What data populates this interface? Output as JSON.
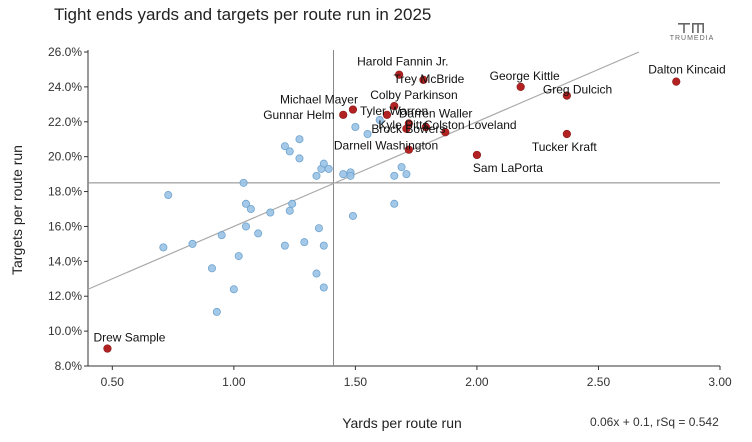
{
  "title": "Tight ends yards and targets per route run in 2025",
  "brand": {
    "name": "TRUMEDIA",
    "icon": "trumedia-logo-icon"
  },
  "formula": "0.06x + 0.1, rSq = 0.542",
  "chart_data": {
    "type": "scatter",
    "title": "Tight ends yards and targets per route run in 2025",
    "xlabel": "Yards per route run",
    "ylabel": "Targets per route run",
    "xlim": [
      0.4,
      3.0
    ],
    "ylim": [
      0.08,
      0.26
    ],
    "x_ticks": [
      0.5,
      1.0,
      1.5,
      2.0,
      2.5,
      3.0
    ],
    "x_tick_labels": [
      "0.50",
      "1.00",
      "1.50",
      "2.00",
      "2.50",
      "3.00"
    ],
    "y_ticks": [
      0.08,
      0.1,
      0.12,
      0.14,
      0.16,
      0.18,
      0.2,
      0.22,
      0.24,
      0.26
    ],
    "y_tick_labels": [
      "8.0%",
      "10.0%",
      "12.0%",
      "14.0%",
      "16.0%",
      "18.0%",
      "20.0%",
      "22.0%",
      "24.0%",
      "26.0%"
    ],
    "grid": false,
    "reference_lines": {
      "x_average": 1.41,
      "y_average": 0.185
    },
    "trendline": {
      "slope": 0.06,
      "intercept": 0.1,
      "r_squared": 0.542
    },
    "colors": {
      "labeled": "#b22222",
      "other": "#9ac3e6",
      "other_stroke": "#6fa3cf",
      "trend": "#aaaaaa",
      "reference": "#888888"
    },
    "labeled_points": [
      {
        "name": "Dalton Kincaid",
        "x": 2.82,
        "y": 0.243
      },
      {
        "name": "Harold Fannin Jr.",
        "x": 1.68,
        "y": 0.247
      },
      {
        "name": "Trey McBride",
        "x": 1.78,
        "y": 0.244
      },
      {
        "name": "George Kittle",
        "x": 2.18,
        "y": 0.24
      },
      {
        "name": "Greg Dulcich",
        "x": 2.37,
        "y": 0.235
      },
      {
        "name": "Colby Parkinson",
        "x": 1.66,
        "y": 0.229
      },
      {
        "name": "Michael Mayer",
        "x": 1.49,
        "y": 0.227
      },
      {
        "name": "Tyler Warren",
        "x": 1.63,
        "y": 0.224
      },
      {
        "name": "Darren Waller",
        "x": 1.72,
        "y": 0.219
      },
      {
        "name": "Gunnar Helm",
        "x": 1.45,
        "y": 0.224
      },
      {
        "name": "Kyle Pitts",
        "x": 1.71,
        "y": 0.216
      },
      {
        "name": "Colston Loveland",
        "x": 1.79,
        "y": 0.217
      },
      {
        "name": "Brock Bowers",
        "x": 1.87,
        "y": 0.214
      },
      {
        "name": "Tucker Kraft",
        "x": 2.37,
        "y": 0.213
      },
      {
        "name": "Darnell Washington",
        "x": 1.72,
        "y": 0.204
      },
      {
        "name": "Sam LaPorta",
        "x": 2.0,
        "y": 0.201
      },
      {
        "name": "Drew Sample",
        "x": 0.48,
        "y": 0.09
      }
    ],
    "other_points": [
      {
        "x": 0.71,
        "y": 0.148
      },
      {
        "x": 0.73,
        "y": 0.178
      },
      {
        "x": 0.83,
        "y": 0.15
      },
      {
        "x": 0.91,
        "y": 0.136
      },
      {
        "x": 0.93,
        "y": 0.111
      },
      {
        "x": 0.95,
        "y": 0.155
      },
      {
        "x": 1.0,
        "y": 0.124
      },
      {
        "x": 1.02,
        "y": 0.143
      },
      {
        "x": 1.04,
        "y": 0.185
      },
      {
        "x": 1.05,
        "y": 0.16
      },
      {
        "x": 1.05,
        "y": 0.173
      },
      {
        "x": 1.07,
        "y": 0.17
      },
      {
        "x": 1.1,
        "y": 0.156
      },
      {
        "x": 1.15,
        "y": 0.168
      },
      {
        "x": 1.21,
        "y": 0.206
      },
      {
        "x": 1.21,
        "y": 0.149
      },
      {
        "x": 1.23,
        "y": 0.203
      },
      {
        "x": 1.23,
        "y": 0.169
      },
      {
        "x": 1.24,
        "y": 0.173
      },
      {
        "x": 1.27,
        "y": 0.21
      },
      {
        "x": 1.27,
        "y": 0.199
      },
      {
        "x": 1.29,
        "y": 0.151
      },
      {
        "x": 1.34,
        "y": 0.189
      },
      {
        "x": 1.34,
        "y": 0.133
      },
      {
        "x": 1.35,
        "y": 0.159
      },
      {
        "x": 1.36,
        "y": 0.193
      },
      {
        "x": 1.37,
        "y": 0.196
      },
      {
        "x": 1.37,
        "y": 0.125
      },
      {
        "x": 1.37,
        "y": 0.149
      },
      {
        "x": 1.39,
        "y": 0.193
      },
      {
        "x": 1.45,
        "y": 0.19
      },
      {
        "x": 1.48,
        "y": 0.191
      },
      {
        "x": 1.48,
        "y": 0.189
      },
      {
        "x": 1.49,
        "y": 0.166
      },
      {
        "x": 1.66,
        "y": 0.173
      },
      {
        "x": 1.66,
        "y": 0.189
      },
      {
        "x": 1.69,
        "y": 0.194
      },
      {
        "x": 1.71,
        "y": 0.19
      },
      {
        "x": 1.55,
        "y": 0.213
      },
      {
        "x": 1.5,
        "y": 0.217
      },
      {
        "x": 1.6,
        "y": 0.221
      }
    ]
  }
}
